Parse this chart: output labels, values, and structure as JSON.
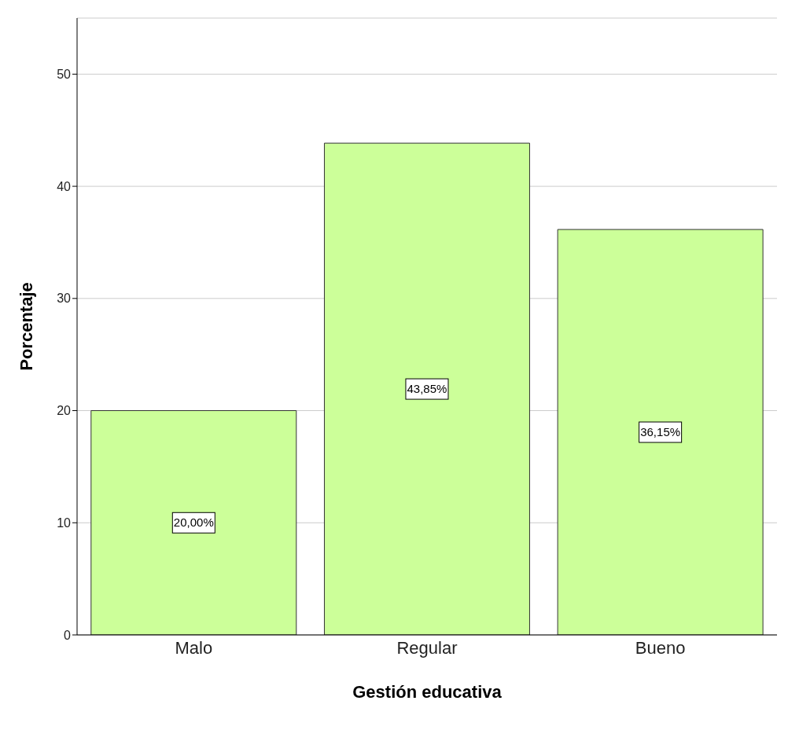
{
  "chart_data": {
    "type": "bar",
    "xlabel": "Gestión educativa",
    "ylabel": "Porcentaje",
    "categories": [
      "Malo",
      "Regular",
      "Bueno"
    ],
    "values": [
      20.0,
      43.85,
      36.15
    ],
    "value_labels": [
      "20,00%",
      "43,85%",
      "36,15%"
    ],
    "color": "#ccff99",
    "ylim": [
      0,
      55
    ],
    "yticks": [
      0,
      10,
      20,
      30,
      40,
      50
    ],
    "grid": "y"
  }
}
